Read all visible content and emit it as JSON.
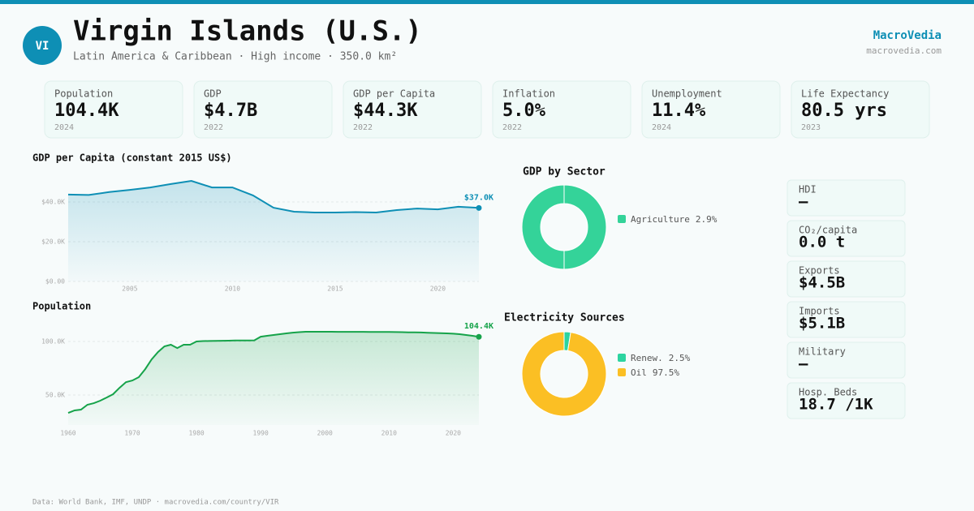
{
  "header": {
    "badge": "VI",
    "title": "Virgin Islands (U.S.)",
    "subtitle": "Latin America & Caribbean · High income · 350.0 km²",
    "brand": "MacroVedia",
    "site": "macrovedia.com"
  },
  "kpis": [
    {
      "label": "Population",
      "value": "104.4K",
      "year": "2024"
    },
    {
      "label": "GDP",
      "value": "$4.7B",
      "year": "2022"
    },
    {
      "label": "GDP per Capita",
      "value": "$44.3K",
      "year": "2022"
    },
    {
      "label": "Inflation",
      "value": "5.0%",
      "year": "2022"
    },
    {
      "label": "Unemployment",
      "value": "11.4%",
      "year": "2024"
    },
    {
      "label": "Life Expectancy",
      "value": "80.5 yrs",
      "year": "2023"
    }
  ],
  "side_stats": [
    {
      "label": "HDI",
      "value": "—"
    },
    {
      "label": "CO₂/capita",
      "value": "0.0 t"
    },
    {
      "label": "Exports",
      "value": "$4.5B"
    },
    {
      "label": "Imports",
      "value": "$5.1B"
    },
    {
      "label": "Military",
      "value": "—"
    },
    {
      "label": "Hosp. Beds",
      "value": "18.7 /1K"
    }
  ],
  "footer": "Data: World Bank, IMF, UNDP · macrovedia.com/country/VIR",
  "chart_data": [
    {
      "type": "line",
      "title": "GDP per Capita (constant 2015 US$)",
      "color": "#0e8fb5",
      "x": [
        2002,
        2003,
        2004,
        2005,
        2006,
        2007,
        2008,
        2009,
        2010,
        2011,
        2012,
        2013,
        2014,
        2015,
        2016,
        2017,
        2018,
        2019,
        2020,
        2021,
        2022
      ],
      "values": [
        43700,
        43500,
        45000,
        46100,
        47300,
        49000,
        50600,
        47300,
        47300,
        43300,
        37100,
        35100,
        34700,
        34700,
        34900,
        34700,
        35900,
        36700,
        36300,
        37600,
        37000
      ],
      "last_value_label": "$37.0K",
      "xlim": [
        2002,
        2022
      ],
      "xticks": [
        2005,
        2010,
        2015,
        2020
      ],
      "ylim": [
        0,
        54000
      ],
      "yticks": [
        {
          "value": 0,
          "label": "$0.00"
        },
        {
          "value": 20000,
          "label": "$20.0K"
        },
        {
          "value": 40000,
          "label": "$40.0K"
        }
      ],
      "grid": true
    },
    {
      "type": "line",
      "title": "Population",
      "color": "#16a34a",
      "x": [
        1960,
        1961,
        1962,
        1963,
        1964,
        1965,
        1966,
        1967,
        1968,
        1969,
        1970,
        1971,
        1972,
        1973,
        1974,
        1975,
        1976,
        1977,
        1978,
        1979,
        1980,
        1981,
        1982,
        1983,
        1984,
        1985,
        1986,
        1987,
        1988,
        1989,
        1990,
        1991,
        1992,
        1993,
        1994,
        1995,
        1996,
        1997,
        1998,
        1999,
        2000,
        2001,
        2002,
        2003,
        2004,
        2005,
        2006,
        2007,
        2008,
        2009,
        2010,
        2011,
        2012,
        2013,
        2014,
        2015,
        2016,
        2017,
        2018,
        2019,
        2020,
        2021,
        2022,
        2023,
        2024
      ],
      "values": [
        33300,
        35600,
        36400,
        40900,
        42400,
        44700,
        47700,
        50800,
        56800,
        62100,
        63600,
        66700,
        74200,
        83300,
        90200,
        95500,
        97000,
        93900,
        97000,
        97000,
        100000,
        100400,
        100500,
        100600,
        100700,
        100800,
        100900,
        101000,
        101000,
        101100,
        104500,
        105300,
        106100,
        106800,
        107600,
        108300,
        108700,
        109100,
        109100,
        109100,
        109100,
        109100,
        109000,
        109000,
        109000,
        109000,
        109000,
        108900,
        108900,
        108900,
        108900,
        108800,
        108700,
        108600,
        108500,
        108400,
        108200,
        108000,
        107800,
        107600,
        107300,
        106800,
        106100,
        105300,
        104400
      ],
      "last_value_label": "104.4K",
      "xlim": [
        1960,
        2024
      ],
      "xticks": [
        1960,
        1970,
        1980,
        1990,
        2000,
        2010,
        2020
      ],
      "ylim": [
        22000,
        116000
      ],
      "yticks": [
        {
          "value": 50000,
          "label": "50.0K"
        },
        {
          "value": 100000,
          "label": "100.0K"
        }
      ],
      "grid": true
    },
    {
      "type": "donut",
      "title": "GDP by Sector",
      "series": [
        {
          "name": "Agriculture",
          "color": "#34d399",
          "values": [
            2.9
          ],
          "value_labels": [
            "2.9%"
          ]
        }
      ]
    },
    {
      "type": "donut",
      "title": "Electricity Sources",
      "series": [
        {
          "name": "Renew.",
          "color": "#2dd4a0",
          "values": [
            2.5
          ],
          "value_labels": [
            "2.5%"
          ]
        },
        {
          "name": "Oil",
          "color": "#fbbf24",
          "values": [
            97.5
          ],
          "value_labels": [
            "97.5%"
          ]
        }
      ]
    }
  ]
}
